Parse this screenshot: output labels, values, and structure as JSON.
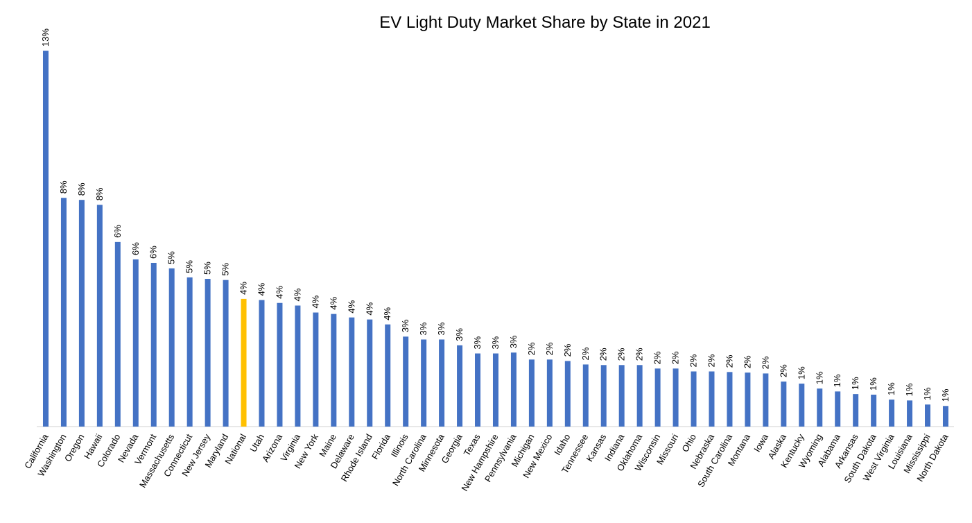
{
  "chart_data": {
    "type": "bar",
    "title": "EV Light Duty Market Share by State in 2021",
    "categories": [
      "California",
      "Washington",
      "Oregon",
      "Hawaii",
      "Colorado",
      "Nevada",
      "Vermont",
      "Massachusetts",
      "Connecticut",
      "New Jersey",
      "Maryland",
      "National",
      "Utah",
      "Arizona",
      "Virginia",
      "New York",
      "Maine",
      "Delaware",
      "Rhode Island",
      "Florida",
      "Illinois",
      "North Carolina",
      "Minnesota",
      "Georgia",
      "Texas",
      "New Hampshire",
      "Pennsylvania",
      "Michigan",
      "New Mexico",
      "Idaho",
      "Tennessee",
      "Kansas",
      "Indiana",
      "Oklahoma",
      "Wisconsin",
      "Missouri",
      "Ohio",
      "Nebraska",
      "South Carolina",
      "Montana",
      "Iowa",
      "Alaska",
      "Kentucky",
      "Wyoming",
      "Alabama",
      "Arkansas",
      "South Dakota",
      "West Virginia",
      "Louisiana",
      "Mississippi",
      "North Dakota"
    ],
    "values": [
      12.95,
      7.88,
      7.81,
      7.64,
      6.36,
      5.76,
      5.64,
      5.45,
      5.14,
      5.09,
      5.05,
      4.4,
      4.36,
      4.26,
      4.17,
      3.93,
      3.88,
      3.76,
      3.69,
      3.52,
      3.1,
      3.0,
      3.0,
      2.8,
      2.52,
      2.52,
      2.55,
      2.31,
      2.31,
      2.26,
      2.14,
      2.12,
      2.12,
      2.12,
      2.0,
      2.0,
      1.9,
      1.9,
      1.88,
      1.86,
      1.83,
      1.55,
      1.48,
      1.31,
      1.21,
      1.12,
      1.1,
      0.93,
      0.9,
      0.76,
      0.71
    ],
    "value_labels": [
      "13%",
      "8%",
      "8%",
      "8%",
      "6%",
      "6%",
      "6%",
      "5%",
      "5%",
      "5%",
      "5%",
      "4%",
      "4%",
      "4%",
      "4%",
      "4%",
      "4%",
      "4%",
      "4%",
      "4%",
      "3%",
      "3%",
      "3%",
      "3%",
      "3%",
      "3%",
      "3%",
      "2%",
      "2%",
      "2%",
      "2%",
      "2%",
      "2%",
      "2%",
      "2%",
      "2%",
      "2%",
      "2%",
      "2%",
      "2%",
      "2%",
      "2%",
      "1%",
      "1%",
      "1%",
      "1%",
      "1%",
      "1%",
      "1%",
      "1%",
      "1%"
    ],
    "colors": [
      "#4472c4",
      "#4472c4",
      "#4472c4",
      "#4472c4",
      "#4472c4",
      "#4472c4",
      "#4472c4",
      "#4472c4",
      "#4472c4",
      "#4472c4",
      "#4472c4",
      "#ffc000",
      "#4472c4",
      "#4472c4",
      "#4472c4",
      "#4472c4",
      "#4472c4",
      "#4472c4",
      "#4472c4",
      "#4472c4",
      "#4472c4",
      "#4472c4",
      "#4472c4",
      "#4472c4",
      "#4472c4",
      "#4472c4",
      "#4472c4",
      "#4472c4",
      "#4472c4",
      "#4472c4",
      "#4472c4",
      "#4472c4",
      "#4472c4",
      "#4472c4",
      "#4472c4",
      "#4472c4",
      "#4472c4",
      "#4472c4",
      "#4472c4",
      "#4472c4",
      "#4472c4",
      "#4472c4",
      "#4472c4",
      "#4472c4",
      "#4472c4",
      "#4472c4",
      "#4472c4",
      "#4472c4",
      "#4472c4",
      "#4472c4",
      "#4472c4"
    ],
    "ylim": [
      0,
      13
    ]
  }
}
